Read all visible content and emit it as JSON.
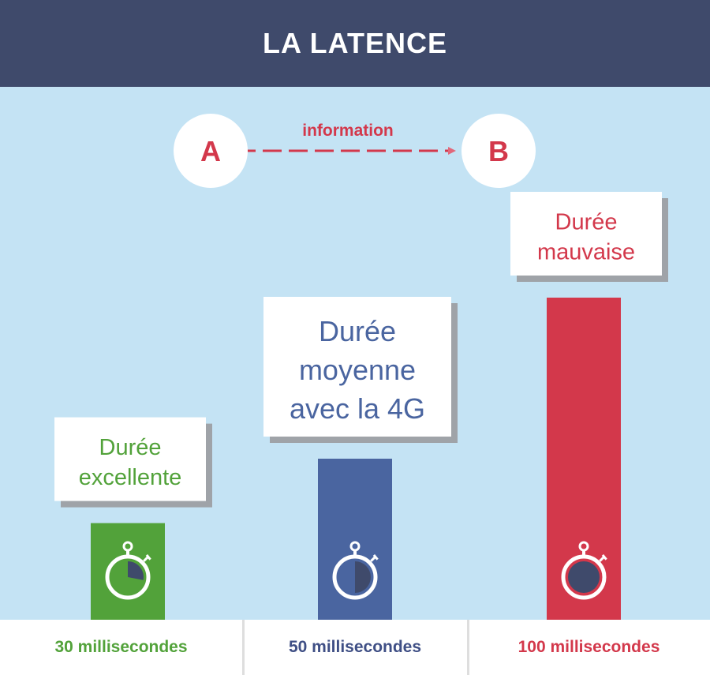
{
  "title": "LA LATENCE",
  "diagram": {
    "point_a": "A",
    "point_b": "B",
    "arrow_label": "information",
    "color": "#d3384b"
  },
  "chart_data": {
    "type": "bar",
    "title": "LA LATENCE",
    "categories": [
      "30 millisecondes",
      "50 millisecondes",
      "100 millisecondes"
    ],
    "values": [
      30,
      50,
      100
    ],
    "unit": "millisecondes",
    "labels": [
      [
        "Durée",
        "excellente"
      ],
      [
        "Durée",
        "moyenne",
        "avec la 4G"
      ],
      [
        "Durée",
        "mauvaise"
      ]
    ],
    "colors": [
      "#52a23a",
      "#4a65a0",
      "#d3384b"
    ],
    "label_colors": [
      "#52a23a",
      "#4a65a0",
      "#d3384b"
    ],
    "footer_colors": [
      "#52a23a",
      "#3f4f85",
      "#d3384b"
    ],
    "stopwatch_fill": [
      0.28,
      0.5,
      1.0
    ],
    "ylim": [
      0,
      100
    ],
    "grid": false
  }
}
